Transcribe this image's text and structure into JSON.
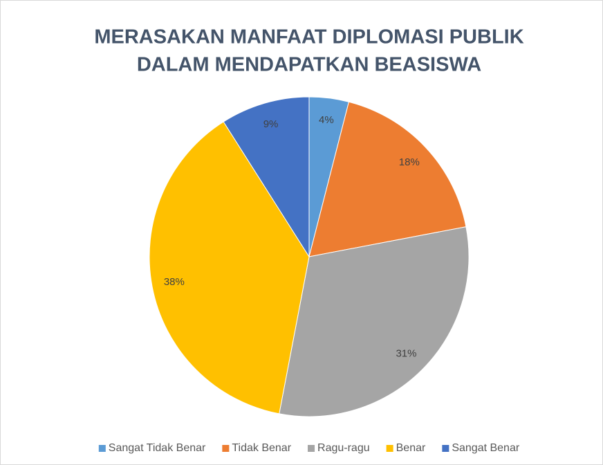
{
  "chart_data": {
    "type": "pie",
    "title": [
      "MERASAKAN MANFAAT DIPLOMASI PUBLIK",
      "DALAM MENDAPATKAN BEASISWA"
    ],
    "categories": [
      "Sangat Tidak Benar",
      "Tidak Benar",
      "Ragu-ragu",
      "Benar",
      "Sangat Benar"
    ],
    "values": [
      4,
      18,
      31,
      38,
      9
    ],
    "value_labels": [
      "4%",
      "18%",
      "31%",
      "38%",
      "9%"
    ],
    "colors": [
      "#5b9bd5",
      "#ed7d31",
      "#a5a5a5",
      "#ffc000",
      "#4472c4"
    ],
    "legend": "bottom"
  }
}
